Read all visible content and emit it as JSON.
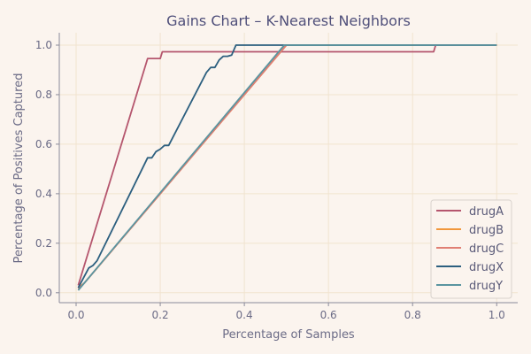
{
  "chart_data": {
    "type": "line",
    "title": "Gains Chart – K-Nearest Neighbors",
    "xlabel": "Percentage of Samples",
    "ylabel": "Percentage of Positives Captured",
    "xlim": [
      -0.04,
      1.05
    ],
    "ylim": [
      -0.04,
      1.05
    ],
    "xticks": [
      "0.0",
      "0.2",
      "0.4",
      "0.6",
      "0.8",
      "1.0"
    ],
    "yticks": [
      "0.0",
      "0.2",
      "0.4",
      "0.6",
      "0.8",
      "1.0"
    ],
    "grid": true,
    "legend_position": "bottom-right",
    "series": [
      {
        "name": "drugA",
        "color": "#b5566e",
        "x": [
          0.005,
          0.17,
          0.2,
          0.205,
          0.85,
          0.855,
          1.0
        ],
        "y": [
          0.03,
          0.946,
          0.946,
          0.973,
          0.973,
          1.0,
          1.0
        ]
      },
      {
        "name": "drugB",
        "color": "#f1973c",
        "x": [
          0.005,
          0.02,
          0.05,
          0.1,
          0.2,
          0.3,
          0.4,
          0.5,
          0.6,
          0.7,
          0.8,
          0.9,
          1.0
        ],
        "y": [
          0.02,
          0.04,
          0.1,
          0.2,
          0.4,
          0.6,
          0.8,
          1.0,
          1.0,
          1.0,
          1.0,
          1.0,
          1.0
        ]
      },
      {
        "name": "drugC",
        "color": "#e07f74",
        "x": [
          0.005,
          0.02,
          0.05,
          0.1,
          0.2,
          0.3,
          0.4,
          0.5,
          0.6,
          0.7,
          0.8,
          0.9,
          1.0
        ],
        "y": [
          0.015,
          0.04,
          0.1,
          0.2,
          0.4,
          0.6,
          0.8,
          1.0,
          1.0,
          1.0,
          1.0,
          1.0,
          1.0
        ]
      },
      {
        "name": "drugX",
        "color": "#2c5f7f",
        "x": [
          0.005,
          0.03,
          0.04,
          0.05,
          0.17,
          0.18,
          0.19,
          0.2,
          0.21,
          0.22,
          0.31,
          0.32,
          0.33,
          0.34,
          0.35,
          0.36,
          0.37,
          0.38,
          0.39,
          0.5,
          1.0
        ],
        "y": [
          0.02,
          0.1,
          0.11,
          0.13,
          0.545,
          0.545,
          0.57,
          0.58,
          0.595,
          0.595,
          0.89,
          0.91,
          0.91,
          0.94,
          0.955,
          0.955,
          0.96,
          1.0,
          1.0,
          1.0,
          1.0
        ]
      },
      {
        "name": "drugY",
        "color": "#5a95a0",
        "x": [
          0.005,
          0.495,
          0.5,
          1.0
        ],
        "y": [
          0.01,
          1.0,
          1.0,
          1.0
        ]
      }
    ]
  }
}
